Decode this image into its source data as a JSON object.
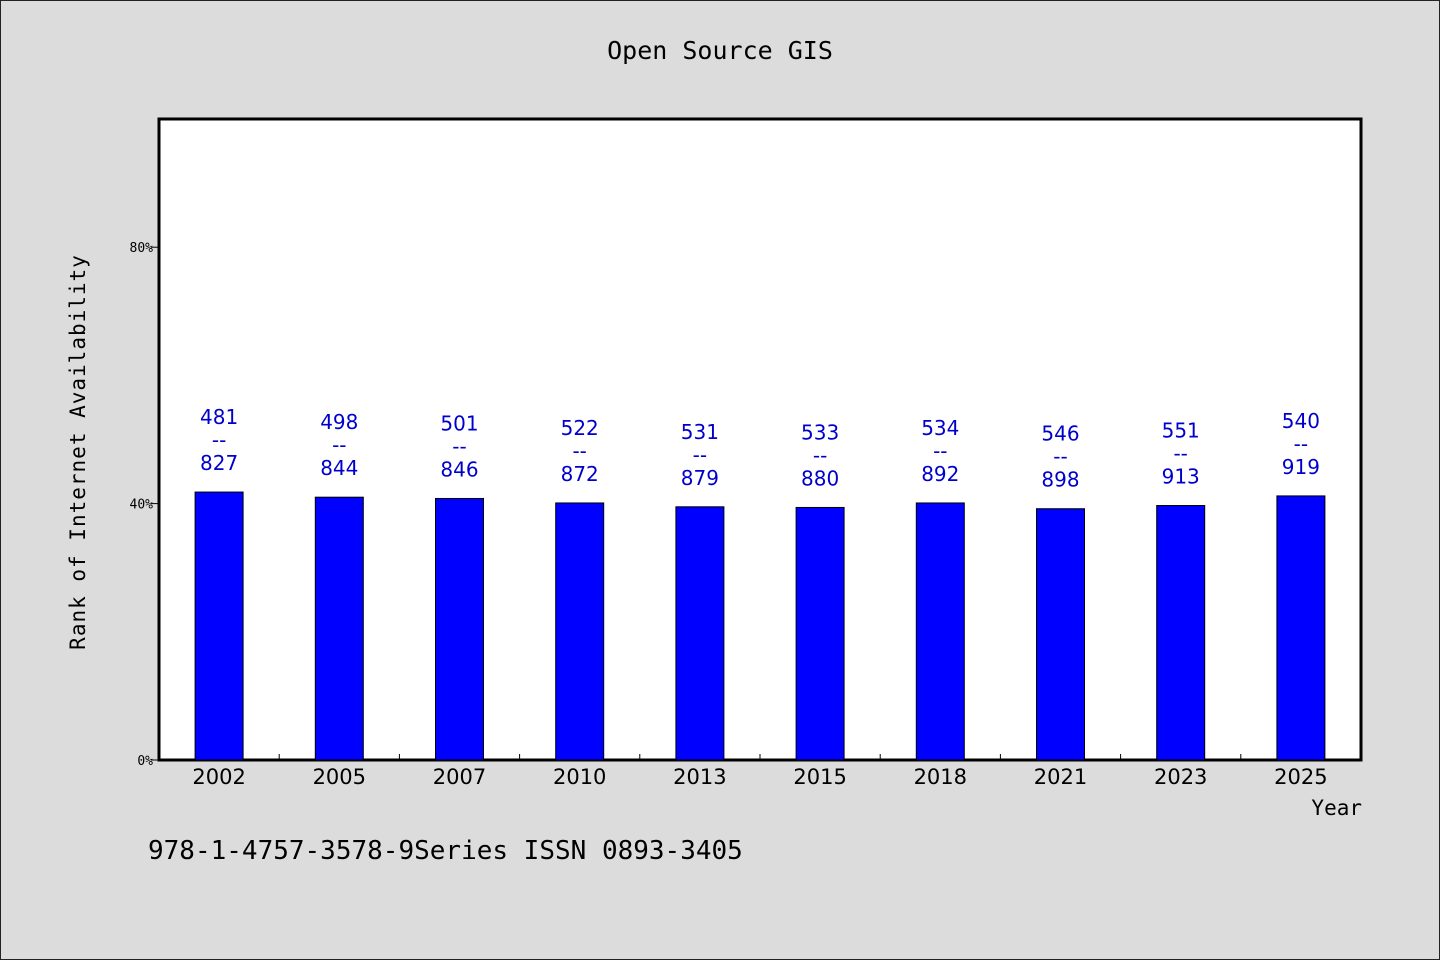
{
  "chart_data": {
    "type": "bar",
    "title": "Open Source GIS",
    "xlabel": "Year",
    "ylabel": "Rank of Internet Availability",
    "categories": [
      "2002",
      "2005",
      "2007",
      "2010",
      "2013",
      "2015",
      "2018",
      "2021",
      "2023",
      "2025"
    ],
    "values": [
      41.8,
      41.0,
      40.8,
      40.1,
      39.5,
      39.4,
      40.1,
      39.2,
      39.7,
      41.2
    ],
    "bar_labels": [
      {
        "top": "481",
        "sep": "--",
        "bottom": "827"
      },
      {
        "top": "498",
        "sep": "--",
        "bottom": "844"
      },
      {
        "top": "501",
        "sep": "--",
        "bottom": "846"
      },
      {
        "top": "522",
        "sep": "--",
        "bottom": "872"
      },
      {
        "top": "531",
        "sep": "--",
        "bottom": "879"
      },
      {
        "top": "533",
        "sep": "--",
        "bottom": "880"
      },
      {
        "top": "534",
        "sep": "--",
        "bottom": "892"
      },
      {
        "top": "546",
        "sep": "--",
        "bottom": "898"
      },
      {
        "top": "551",
        "sep": "--",
        "bottom": "913"
      },
      {
        "top": "540",
        "sep": "--",
        "bottom": "919"
      }
    ],
    "ylim": [
      0,
      100
    ],
    "yticks": [
      0,
      40,
      80
    ],
    "ytick_labels": [
      "0%",
      "40%",
      "80%"
    ],
    "grid": false,
    "colors": {
      "bar": "#0000ff",
      "label": "#0000cc",
      "plot_bg": "#ffffff",
      "page_bg": "#dcdcdc"
    }
  },
  "footer": {
    "note": "978-1-4757-3578-9Series ISSN 0893-3405"
  }
}
